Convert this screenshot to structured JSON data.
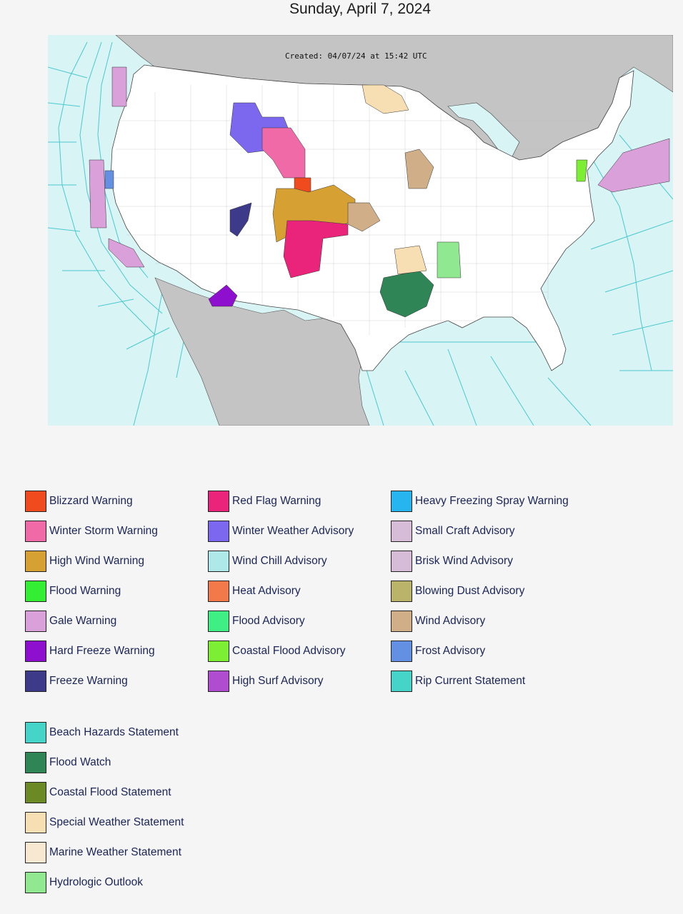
{
  "header": {
    "title": "Sunday, April 7, 2024"
  },
  "map": {
    "created_text": "Created: 04/07/24 at 15:42 UTC",
    "colors": {
      "water": "#d8f4f5",
      "land_foreign": "#c4c4c4",
      "land_us": "#ffffff",
      "marine_zone_line": "#4cc9cf"
    }
  },
  "legend": {
    "columns": [
      [
        {
          "label": "Blizzard Warning",
          "color": "#f04a1f"
        },
        {
          "label": "Winter Storm Warning",
          "color": "#f06aa8"
        },
        {
          "label": "High Wind Warning",
          "color": "#d6a032"
        },
        {
          "label": "Flood Warning",
          "color": "#33ee33"
        },
        {
          "label": "Gale Warning",
          "color": "#d9a0d9"
        },
        {
          "label": "Hard Freeze Warning",
          "color": "#8f0fcf"
        },
        {
          "label": "Freeze Warning",
          "color": "#3e3a8a"
        }
      ],
      [
        {
          "label": "Red Flag Warning",
          "color": "#ea247a"
        },
        {
          "label": "Winter Weather Advisory",
          "color": "#7b68ee"
        },
        {
          "label": "Wind Chill Advisory",
          "color": "#aee8e8"
        },
        {
          "label": "Heat Advisory",
          "color": "#f2794a"
        },
        {
          "label": "Flood Advisory",
          "color": "#3fee85"
        },
        {
          "label": "Coastal Flood Advisory",
          "color": "#7cee33"
        },
        {
          "label": "High Surf Advisory",
          "color": "#b04cd0"
        }
      ],
      [
        {
          "label": "Heavy Freezing Spray Warning",
          "color": "#27b5ef"
        },
        {
          "label": "Small Craft Advisory",
          "color": "#d6bcd6"
        },
        {
          "label": "Brisk Wind Advisory",
          "color": "#d6bcd6"
        },
        {
          "label": "Blowing Dust Advisory",
          "color": "#b9b46a"
        },
        {
          "label": "Wind Advisory",
          "color": "#cfae88"
        },
        {
          "label": "Frost Advisory",
          "color": "#6490e4"
        },
        {
          "label": "Rip Current Statement",
          "color": "#46d3c8"
        }
      ],
      [
        {
          "label": "Beach Hazards Statement",
          "color": "#46d3c8"
        },
        {
          "label": "Flood Watch",
          "color": "#2f8555"
        },
        {
          "label": "Coastal Flood Statement",
          "color": "#6b8a26"
        },
        {
          "label": "Special Weather Statement",
          "color": "#f8dfb3"
        },
        {
          "label": "Marine Weather Statement",
          "color": "#f8e8d2"
        },
        {
          "label": "Hydrologic Outlook",
          "color": "#90e890"
        }
      ]
    ]
  }
}
